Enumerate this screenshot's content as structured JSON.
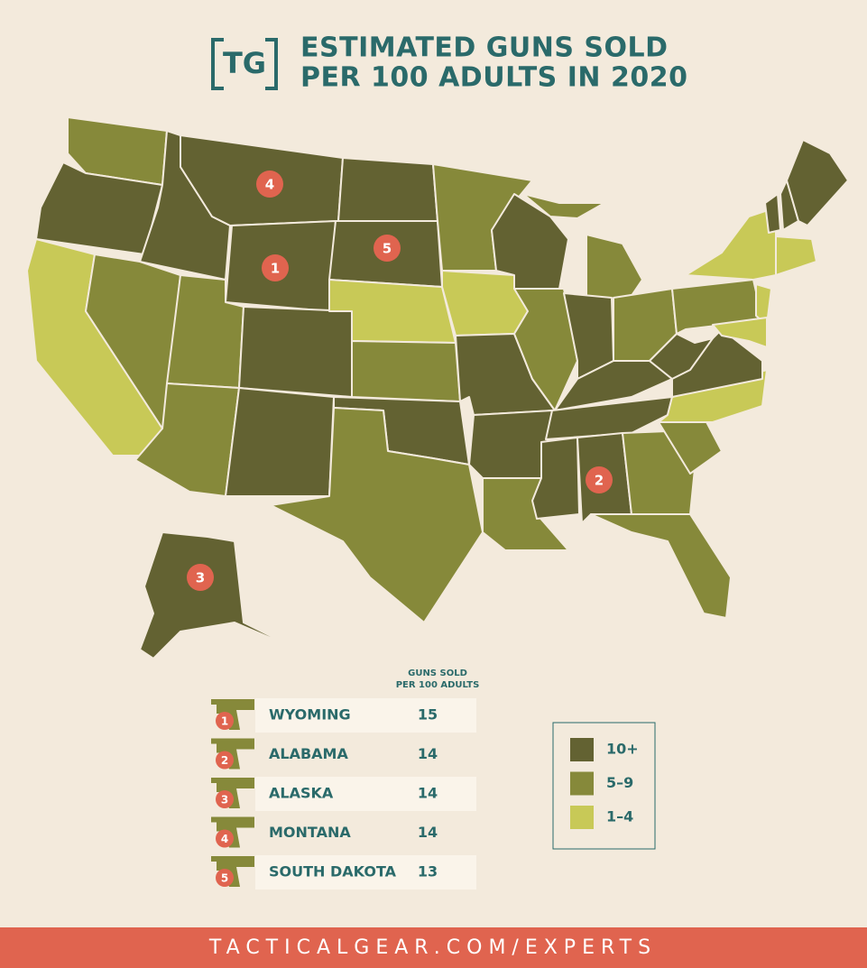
{
  "header": {
    "logo": "TG",
    "title_lines": [
      "ESTIMATED GUNS SOLD",
      "PER 100 ADULTS IN 2020"
    ]
  },
  "legend": {
    "items": [
      {
        "label": "10+",
        "color": "#636232"
      },
      {
        "label": "5–9",
        "color": "#86893a"
      },
      {
        "label": "1–4",
        "color": "#c8c957"
      }
    ]
  },
  "table": {
    "header_lines": [
      "GUNS SOLD",
      "PER 100 ADULTS"
    ],
    "rows": [
      {
        "rank": 1,
        "state": "WYOMING",
        "value": 15
      },
      {
        "rank": 2,
        "state": "ALABAMA",
        "value": 14
      },
      {
        "rank": 3,
        "state": "ALASKA",
        "value": 14
      },
      {
        "rank": 4,
        "state": "MONTANA",
        "value": 14
      },
      {
        "rank": 5,
        "state": "SOUTH DAKOTA",
        "value": 13
      }
    ]
  },
  "footer": {
    "text": "TACTICALGEAR.COM/EXPERTS"
  }
}
